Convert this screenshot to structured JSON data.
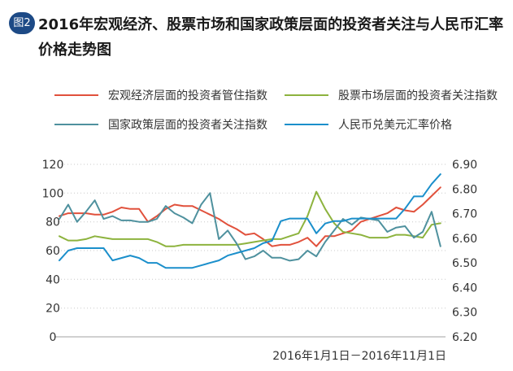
{
  "figure_label": "图2",
  "badge_color": "#1d4a86",
  "chart_data": {
    "type": "line",
    "title": "2016年宏观经济、股票市场和国家政策层面的投资者关注与人民币汇率价格走势图",
    "xlabel": "2016年1月1日－2016年11月1日",
    "x_range": [
      "2016-01-01",
      "2016-11-01"
    ],
    "x": [
      "2016-01-01",
      "2016-01-08",
      "2016-01-15",
      "2016-01-22",
      "2016-01-29",
      "2016-02-05",
      "2016-02-12",
      "2016-02-19",
      "2016-02-26",
      "2016-03-04",
      "2016-03-11",
      "2016-03-18",
      "2016-03-25",
      "2016-04-01",
      "2016-04-08",
      "2016-04-15",
      "2016-04-22",
      "2016-04-29",
      "2016-05-06",
      "2016-05-13",
      "2016-05-20",
      "2016-05-27",
      "2016-06-03",
      "2016-06-10",
      "2016-06-17",
      "2016-06-24",
      "2016-07-01",
      "2016-07-08",
      "2016-07-15",
      "2016-07-22",
      "2016-07-29",
      "2016-08-05",
      "2016-08-12",
      "2016-08-19",
      "2016-08-26",
      "2016-09-02",
      "2016-09-09",
      "2016-09-16",
      "2016-09-23",
      "2016-09-30",
      "2016-10-07",
      "2016-10-14",
      "2016-10-21",
      "2016-10-28"
    ],
    "y_left": {
      "range": [
        0,
        120
      ],
      "ticks": [
        "0",
        "20",
        "40",
        "60",
        "80",
        "100",
        "120"
      ]
    },
    "y_right": {
      "range": [
        6.2,
        6.9
      ],
      "ticks": [
        "6.20",
        "6.30",
        "6.40",
        "6.50",
        "6.60",
        "6.70",
        "6.80",
        "6.90"
      ]
    },
    "grid": true,
    "legend_position": "top",
    "series": [
      {
        "name": "宏观经济层面的投资者管住指数",
        "color": "#e1513c",
        "axis": "left",
        "values": [
          84,
          86,
          86,
          86,
          85,
          85,
          87,
          90,
          89,
          89,
          80,
          84,
          89,
          92,
          91,
          91,
          88,
          85,
          82,
          78,
          75,
          71,
          72,
          68,
          63,
          64,
          64,
          66,
          69,
          63,
          70,
          70,
          72,
          74,
          80,
          82,
          84,
          86,
          90,
          88,
          87,
          92,
          98,
          104
        ]
      },
      {
        "name": "股票市场层面的投资者关注指数",
        "color": "#8db33e",
        "axis": "left",
        "values": [
          70,
          67,
          67,
          68,
          70,
          69,
          68,
          68,
          68,
          68,
          68,
          66,
          63,
          63,
          64,
          64,
          64,
          64,
          64,
          64,
          64,
          65,
          66,
          67,
          68,
          68,
          70,
          72,
          84,
          101,
          89,
          79,
          73,
          72,
          71,
          69,
          69,
          69,
          71,
          71,
          70,
          69,
          78,
          79
        ]
      },
      {
        "name": "国家政策层面的投资者关注指数",
        "color": "#4f919e",
        "axis": "left",
        "values": [
          82,
          92,
          80,
          87,
          95,
          82,
          84,
          81,
          81,
          80,
          80,
          82,
          91,
          86,
          83,
          79,
          92,
          100,
          68,
          74,
          65,
          54,
          56,
          60,
          55,
          55,
          53,
          54,
          60,
          56,
          66,
          74,
          82,
          78,
          83,
          82,
          81,
          73,
          76,
          77,
          69,
          73,
          87,
          63
        ]
      },
      {
        "name": "人民币兑美元汇率价格",
        "color": "#1b8fcb",
        "axis": "right",
        "values": [
          6.51,
          6.55,
          6.56,
          6.56,
          6.56,
          6.56,
          6.51,
          6.52,
          6.53,
          6.52,
          6.5,
          6.5,
          6.48,
          6.48,
          6.48,
          6.48,
          6.49,
          6.5,
          6.51,
          6.53,
          6.54,
          6.55,
          6.56,
          6.58,
          6.59,
          6.67,
          6.68,
          6.68,
          6.68,
          6.62,
          6.66,
          6.67,
          6.67,
          6.68,
          6.68,
          6.68,
          6.68,
          6.68,
          6.68,
          6.72,
          6.77,
          6.77,
          6.82,
          6.86
        ]
      }
    ]
  }
}
